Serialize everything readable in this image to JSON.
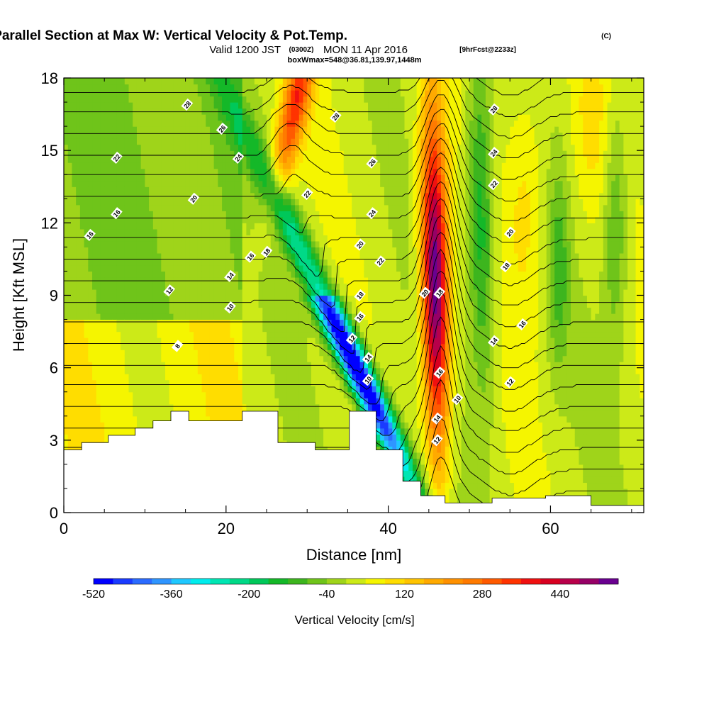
{
  "title": {
    "main": "Wind-Parallel Section at Max W: Vertical Velocity & Pot.Temp.",
    "copyright": "(C)",
    "valid_prefix": "Valid 1200 JST",
    "valid_z": "(0300Z)",
    "valid_date": "MON 11 Apr 2016",
    "forecast": "[9hrFcst@2233z]",
    "box": "boxWmax=548@36.81,139.97,1448m"
  },
  "chart_data": {
    "type": "heatmap",
    "xlabel": "Distance [nm]",
    "ylabel": "Height [Kft MSL]",
    "xlim": [
      0,
      71.5
    ],
    "ylim": [
      0,
      18
    ],
    "x_ticks": [
      "0",
      "20",
      "40",
      "60"
    ],
    "y_ticks": [
      "0",
      "3",
      "6",
      "9",
      "12",
      "15",
      "18"
    ],
    "colorbar": {
      "label": "Vertical Velocity [cm/s]",
      "tick_labels": [
        "-520",
        "-360",
        "-200",
        "-40",
        "120",
        "280",
        "440"
      ],
      "levels_cm_s": [
        -520,
        560
      ],
      "colors": [
        "#0000ff",
        "#1a3bff",
        "#2b6bff",
        "#2f95ff",
        "#1fc8ff",
        "#00eded",
        "#00e6b3",
        "#00d987",
        "#00c85a",
        "#14b828",
        "#3db51e",
        "#6fc41a",
        "#9fd41a",
        "#ccea18",
        "#f5f500",
        "#ffdd00",
        "#ffc400",
        "#ffaa00",
        "#ff9100",
        "#ff7a00",
        "#ff5a00",
        "#ff3300",
        "#f01010",
        "#d80020",
        "#b8004a",
        "#960066",
        "#6a0090"
      ]
    },
    "vertical_velocity_features": [
      {
        "kind": "downdraft",
        "center_distance_nm": 37.5,
        "height_kft": 5.0,
        "peak_cm_s": -520
      },
      {
        "kind": "updraft",
        "center_distance_nm": 46.5,
        "height_kft": 9.0,
        "peak_cm_s": 548
      },
      {
        "kind": "updraft",
        "center_distance_nm": 28.5,
        "height_kft": 16.0,
        "peak_cm_s": 300
      },
      {
        "kind": "downdraft",
        "center_distance_nm": 24.5,
        "height_kft": 12.0,
        "peak_cm_s": -200
      },
      {
        "kind": "downdraft",
        "center_distance_nm": 52.0,
        "height_kft": 13.0,
        "peak_cm_s": -160
      }
    ],
    "potential_temperature_contour_labels": [
      "6",
      "8",
      "10",
      "12",
      "14",
      "16",
      "18",
      "20",
      "22",
      "24",
      "26",
      "28"
    ],
    "terrain": {
      "note": "white terrain mask",
      "profile": [
        {
          "x": 0,
          "h": 2.6
        },
        {
          "x": 2.2,
          "h": 2.9
        },
        {
          "x": 5.5,
          "h": 3.2
        },
        {
          "x": 8.8,
          "h": 3.5
        },
        {
          "x": 11,
          "h": 3.8
        },
        {
          "x": 13.2,
          "h": 4.2
        },
        {
          "x": 15.4,
          "h": 3.8
        },
        {
          "x": 22,
          "h": 4.2
        },
        {
          "x": 26.4,
          "h": 2.9
        },
        {
          "x": 31,
          "h": 2.6
        },
        {
          "x": 35.2,
          "h": 4.2
        },
        {
          "x": 38.5,
          "h": 2.6
        },
        {
          "x": 41.8,
          "h": 1.3
        },
        {
          "x": 44,
          "h": 0.7
        },
        {
          "x": 47,
          "h": 0.4
        },
        {
          "x": 52.8,
          "h": 0.6
        },
        {
          "x": 59.4,
          "h": 0.7
        },
        {
          "x": 65,
          "h": 0.3
        },
        {
          "x": 71.5,
          "h": 0.3
        }
      ]
    }
  }
}
